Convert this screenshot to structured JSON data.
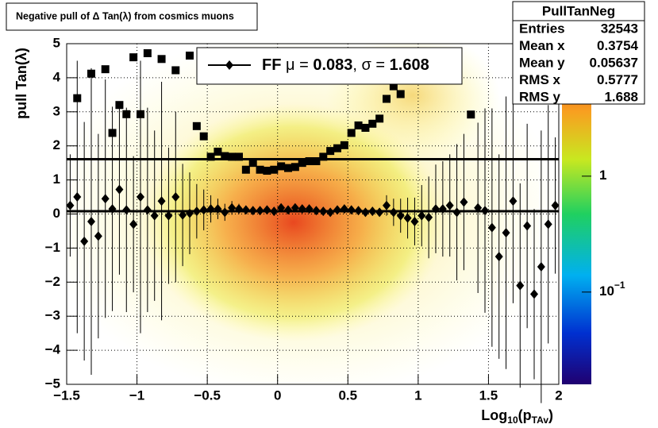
{
  "chart_data": {
    "type": "scatter",
    "title": "Negative pull of Δ Tan(λ) from cosmics muons",
    "xlabel": [
      "Log",
      "10",
      "(p",
      "TAv",
      ")"
    ],
    "ylabel": "pull Tan(λ)",
    "xlim": [
      -1.5,
      2
    ],
    "ylim": [
      -5,
      5
    ],
    "xticks": [
      {
        "value": -1.5,
        "label": "−1.5"
      },
      {
        "value": -1,
        "label": "−1"
      },
      {
        "value": -0.5,
        "label": "−0.5"
      },
      0,
      0.5,
      1,
      1.5,
      2
    ],
    "yticks": [
      {
        "value": -5,
        "label": "−5"
      },
      {
        "value": -4,
        "label": "−4"
      },
      {
        "value": -3,
        "label": "−3"
      },
      {
        "value": -2,
        "label": "−2"
      },
      {
        "value": -1,
        "label": "−1"
      },
      0,
      1,
      2,
      3,
      4,
      5
    ],
    "grid": true,
    "zlog": true,
    "zlim": [
      0.016,
      13.9
    ],
    "zticks": [
      {
        "value": 1,
        "label": "1"
      },
      {
        "value": 0.1,
        "label": "10",
        "exponent": "−1"
      }
    ],
    "series": [
      {
        "color": "#000000",
        "marker": "square",
        "x": [
          -1.425,
          -1.325,
          -1.225,
          -1.175,
          -1.125,
          -1.075,
          -1.025,
          -0.975,
          -0.925,
          -0.825,
          -0.725,
          -0.625,
          -0.575,
          -0.525,
          -0.475,
          -0.425,
          -0.375,
          -0.325,
          -0.275,
          -0.225,
          -0.175,
          -0.125,
          -0.075,
          -0.025,
          0.025,
          0.075,
          0.125,
          0.175,
          0.225,
          0.275,
          0.325,
          0.375,
          0.425,
          0.475,
          0.525,
          0.575,
          0.625,
          0.675,
          0.725,
          0.775,
          0.825,
          0.875,
          1.375
        ],
        "values": [
          3.4,
          4.12,
          4.25,
          2.38,
          3.2,
          2.93,
          4.6,
          2.93,
          4.72,
          4.55,
          4.22,
          4.65,
          2.58,
          2.28,
          1.68,
          1.83,
          1.7,
          1.68,
          1.68,
          1.3,
          1.5,
          1.3,
          1.27,
          1.3,
          1.4,
          1.35,
          1.38,
          1.5,
          1.55,
          1.55,
          1.68,
          1.85,
          1.93,
          2.02,
          2.38,
          2.6,
          2.53,
          2.65,
          2.8,
          3.38,
          3.75,
          3.52,
          2.92
        ]
      },
      {
        "color": "#000000",
        "marker": "diamond",
        "x": [
          -1.475,
          -1.425,
          -1.375,
          -1.325,
          -1.275,
          -1.225,
          -1.175,
          -1.125,
          -1.075,
          -1.025,
          -0.975,
          -0.925,
          -0.875,
          -0.825,
          -0.775,
          -0.725,
          -0.675,
          -0.625,
          -0.575,
          -0.525,
          -0.475,
          -0.425,
          -0.375,
          -0.325,
          -0.275,
          -0.225,
          -0.175,
          -0.125,
          -0.075,
          -0.025,
          0.025,
          0.075,
          0.125,
          0.175,
          0.225,
          0.275,
          0.325,
          0.375,
          0.425,
          0.475,
          0.525,
          0.575,
          0.625,
          0.675,
          0.725,
          0.775,
          0.825,
          0.875,
          0.925,
          0.975,
          1.025,
          1.075,
          1.125,
          1.175,
          1.225,
          1.275,
          1.325,
          1.375,
          1.425,
          1.475,
          1.525,
          1.575,
          1.625,
          1.675,
          1.725,
          1.775,
          1.825,
          1.875,
          1.925,
          1.975
        ],
        "values": [
          0.25,
          0.5,
          -0.8,
          -0.22,
          -0.65,
          0.45,
          0.15,
          0.72,
          0.12,
          -0.3,
          0.5,
          0.12,
          -0.05,
          0.38,
          -0.05,
          0.5,
          -0.03,
          0.02,
          0.08,
          0.12,
          0.15,
          0.15,
          0.05,
          0.18,
          0.15,
          0.12,
          0.1,
          0.1,
          0.12,
          0.08,
          0.18,
          0.12,
          0.18,
          0.15,
          0.15,
          0.1,
          0.08,
          0.05,
          0.12,
          0.15,
          0.12,
          0.1,
          0.05,
          0.08,
          0.05,
          0.25,
          0.05,
          -0.05,
          -0.12,
          -0.22,
          -0.05,
          -0.1,
          0.15,
          0.15,
          0.25,
          0.05,
          0.35,
          null,
          0.18,
          0.1,
          -0.4,
          -1.25,
          -0.55,
          0.38,
          -2.1,
          -0.35,
          -2.35,
          -1.55,
          -0.3,
          0.25
        ],
        "errors": [
          1.5,
          4,
          3.5,
          4.5,
          3,
          3.5,
          3,
          2.5,
          3,
          2,
          4,
          3,
          2.5,
          3.5,
          2,
          2.5,
          1.5,
          1.2,
          0.8,
          0.6,
          0.4,
          0.3,
          0.25,
          0.2,
          0.15,
          0.12,
          0.12,
          0.12,
          0.12,
          0.12,
          0.12,
          0.12,
          0.12,
          0.12,
          0.12,
          0.12,
          0.12,
          0.12,
          0.12,
          0.12,
          0.12,
          0.12,
          0.12,
          0.12,
          0.12,
          0.3,
          0.4,
          0.5,
          0.6,
          0.7,
          0.9,
          1.2,
          1.3,
          1.4,
          1.5,
          2,
          2,
          null,
          2.5,
          3,
          3.5,
          3,
          4,
          3,
          3,
          3,
          2.5,
          4,
          3.5,
          2
        ]
      }
    ],
    "fit": {
      "label": "FF",
      "mu_label": "μ =",
      "mu": 0.083,
      "sigma_label": ", σ =",
      "sigma": 1.608
    },
    "stats": {
      "title": "PullTanNeg",
      "rows": [
        [
          "Entries",
          "32543"
        ],
        [
          "Mean x",
          "0.3754"
        ],
        [
          "Mean y",
          "0.05637"
        ],
        [
          "RMS x",
          "0.5777"
        ],
        [
          "RMS y",
          "1.688"
        ]
      ]
    }
  }
}
